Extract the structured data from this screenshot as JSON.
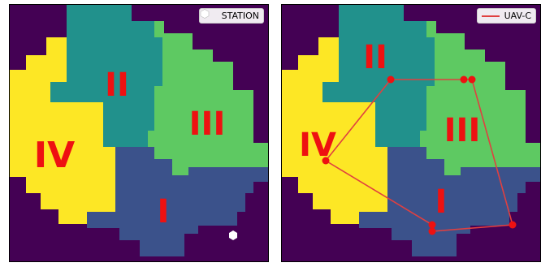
{
  "colors": {
    "background": "#440154",
    "region_I": "#3b528b",
    "region_II": "#21918c",
    "region_III": "#5ec962",
    "region_IV": "#fde725",
    "label": "#ee1111",
    "station": "#ffffff",
    "route": "#e04040",
    "route_marker": "#ee1111"
  },
  "left_panel": {
    "legend_label": "STATION",
    "legend_icon": "hexagon-icon",
    "region_labels": {
      "I": "I",
      "II": "II",
      "III": "III",
      "IV": "IV"
    }
  },
  "right_panel": {
    "legend_label": "UAV-C",
    "legend_icon": "line-icon",
    "region_labels": {
      "I": "I",
      "II": "II",
      "III": "III",
      "IV": "IV"
    }
  }
}
